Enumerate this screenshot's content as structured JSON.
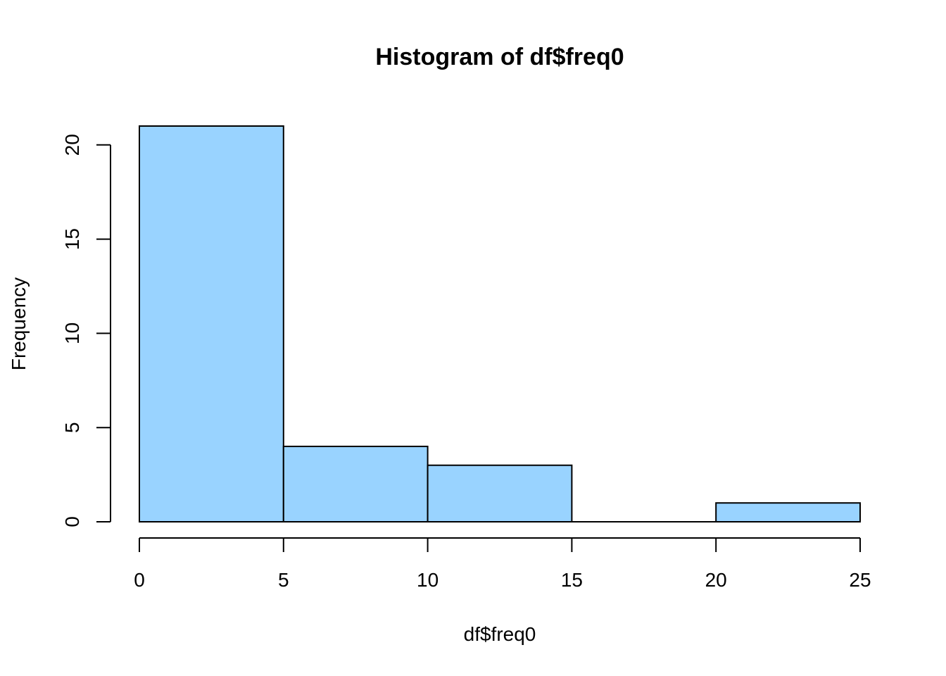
{
  "chart_data": {
    "type": "bar",
    "title": "Histogram of df$freq0",
    "xlabel": "df$freq0",
    "ylabel": "Frequency",
    "bins": [
      {
        "start": 0,
        "end": 5,
        "count": 21
      },
      {
        "start": 5,
        "end": 10,
        "count": 4
      },
      {
        "start": 10,
        "end": 15,
        "count": 3
      },
      {
        "start": 15,
        "end": 20,
        "count": 0
      },
      {
        "start": 20,
        "end": 25,
        "count": 1
      }
    ],
    "xlim": [
      0,
      25
    ],
    "ylim": [
      0,
      21
    ],
    "x_ticks": [
      0,
      5,
      10,
      15,
      20,
      25
    ],
    "y_ticks": [
      0,
      5,
      10,
      15,
      20
    ],
    "bar_color": "#99D3FF",
    "edge_color": "#000000",
    "grid": false,
    "legend": "none"
  }
}
